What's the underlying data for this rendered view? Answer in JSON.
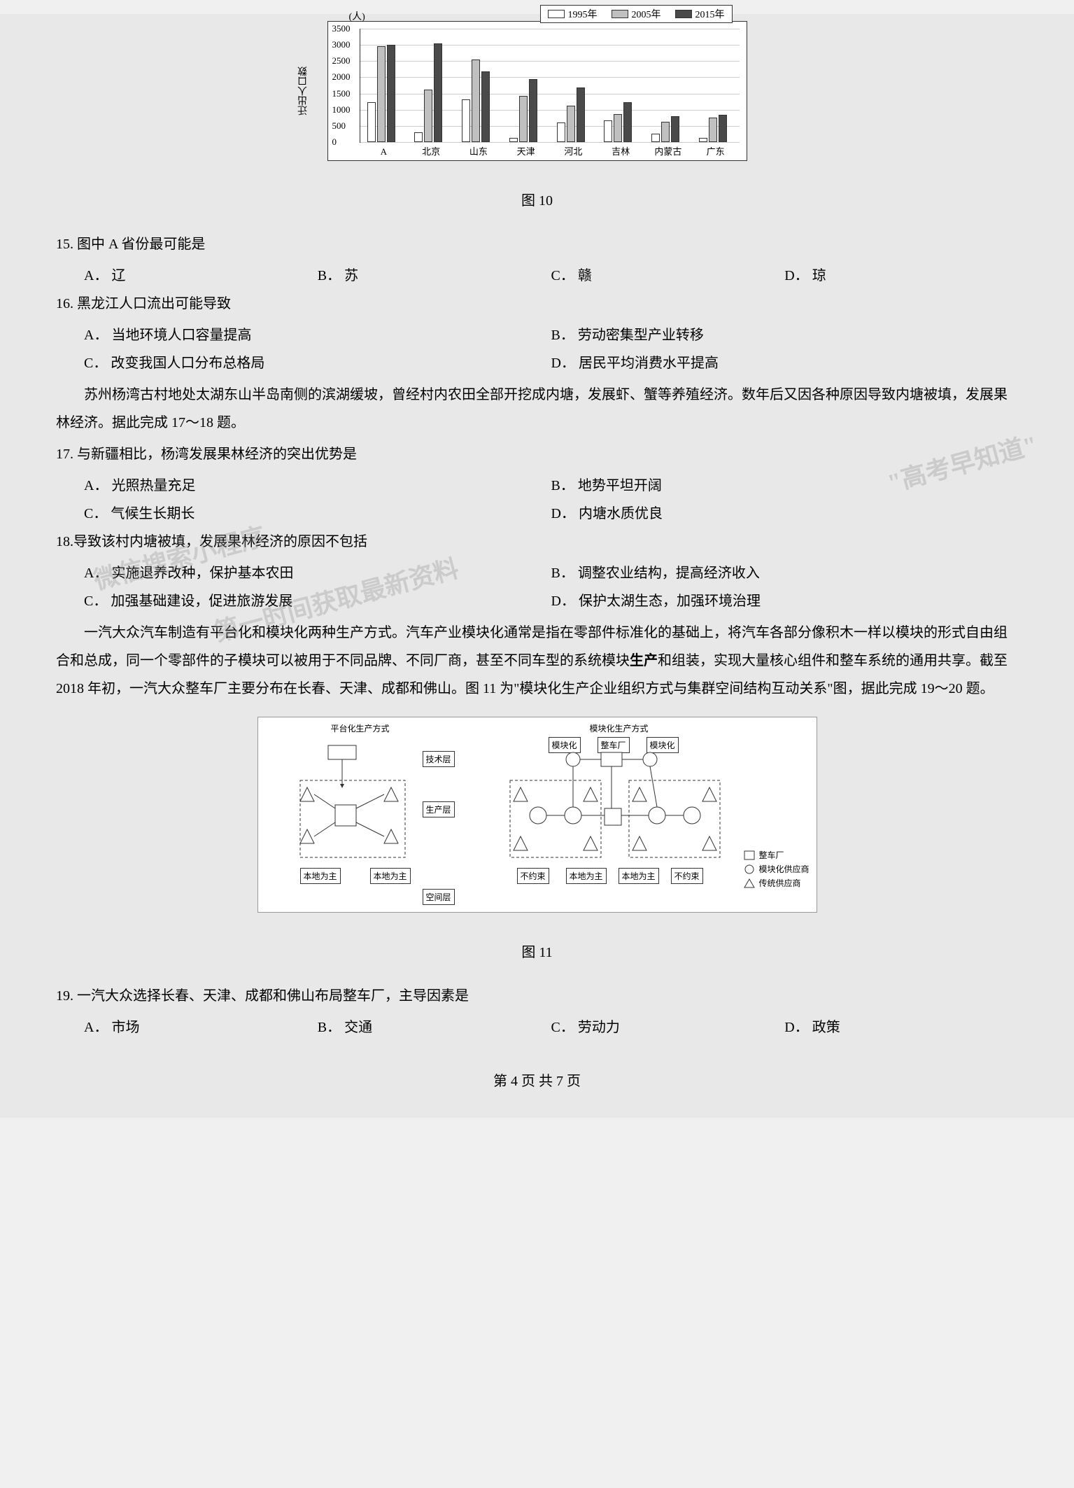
{
  "chart10": {
    "type": "bar",
    "ylabel_unit": "(人)",
    "ylabel": "迁出人口数",
    "legend": [
      "1995年",
      "2005年",
      "2015年"
    ],
    "legend_colors": [
      "#ffffff",
      "#c0c0c0",
      "#4a4a4a"
    ],
    "categories": [
      "A",
      "北京",
      "山东",
      "天津",
      "河北",
      "吉林",
      "内蒙古",
      "广东"
    ],
    "series": [
      [
        1200,
        2900,
        2950
      ],
      [
        300,
        1600,
        3000
      ],
      [
        1300,
        2500,
        2150
      ],
      [
        120,
        1400,
        1900
      ],
      [
        600,
        1100,
        1650
      ],
      [
        650,
        850,
        1200
      ],
      [
        250,
        620,
        780
      ],
      [
        120,
        750,
        820
      ]
    ],
    "ylim": [
      0,
      3500
    ],
    "ytick_step": 500,
    "yticks": [
      0,
      500,
      1000,
      1500,
      2000,
      2500,
      3000,
      3500
    ],
    "grid_color": "#cccccc",
    "bar_colors": [
      "#ffffff",
      "#c0c0c0",
      "#4a4a4a"
    ]
  },
  "captions": {
    "fig10": "图 10",
    "fig11": "图 11"
  },
  "q15": {
    "text": "15.  图中 A 省份最可能是",
    "opts": [
      "A． 辽",
      "B． 苏",
      "C． 赣",
      "D． 琼"
    ]
  },
  "q16": {
    "text": "16.  黑龙江人口流出可能导致",
    "opts": [
      "A． 当地环境人口容量提高",
      "B． 劳动密集型产业转移",
      "C． 改变我国人口分布总格局",
      "D． 居民平均消费水平提高"
    ]
  },
  "passage1": "苏州杨湾古村地处太湖东山半岛南侧的滨湖缓坡，曾经村内农田全部开挖成内塘，发展虾、蟹等养殖经济。数年后又因各种原因导致内塘被填，发展果林经济。据此完成 17～18 题。",
  "q17": {
    "text": "17.  与新疆相比，杨湾发展果林经济的突出优势是",
    "opts": [
      "A． 光照热量充足",
      "B． 地势平坦开阔",
      "C． 气候生长期长",
      "D． 内塘水质优良"
    ]
  },
  "q18": {
    "text": "18.导致该村内塘被填，发展果林经济的原因不包括",
    "opts": [
      "A． 实施退养改种，保护基本农田",
      "B． 调整农业结构，提高经济收入",
      "C． 加强基础建设，促进旅游发展",
      "D． 保护太湖生态，加强环境治理"
    ]
  },
  "passage2_parts": {
    "p1": "一汽大众汽车制造有平台化和模块化两种生产方式。汽车产业模块化通常是指在零部件标准化的基础上，将汽车各部分像积木一样以模块的形式自由组合和总成，同一个零部件的子模块可以被用于不同品牌、不同厂商，甚至不同车型的系统模块",
    "bold": "生产",
    "p2": "和组装，实现大量核心组件和整车系统的通用共享。截至 2018 年初，一汽大众整车厂主要分布在长春、天津、成都和佛山。图 11 为\"模块化生产企业组织方式与集群空间结构互动关系\"图，据此完成 19～20 题。"
  },
  "fig11_labels": {
    "title_left": "平台化生产方式",
    "title_right": "模块化生产方式",
    "tech_layer": "技术层",
    "prod_layer": "生产层",
    "space_layer": "空间层",
    "modular": "模块化",
    "vehicle_factory": "整车厂",
    "local": "本地为主",
    "not_constrained": "不约束",
    "legend_box": "整车厂",
    "legend_circle": "模块化供应商",
    "legend_triangle": "传统供应商"
  },
  "q19": {
    "text": "19.  一汽大众选择长春、天津、成都和佛山布局整车厂，主导因素是",
    "opts": [
      "A． 市场",
      "B． 交通",
      "C． 劳动力",
      "D． 政策"
    ]
  },
  "footer": "第 4 页 共 7 页",
  "watermarks": {
    "w1": "\"高考早知道\"",
    "w2": "微信搜索小程序",
    "w3": "第一时间获取最新资料"
  }
}
